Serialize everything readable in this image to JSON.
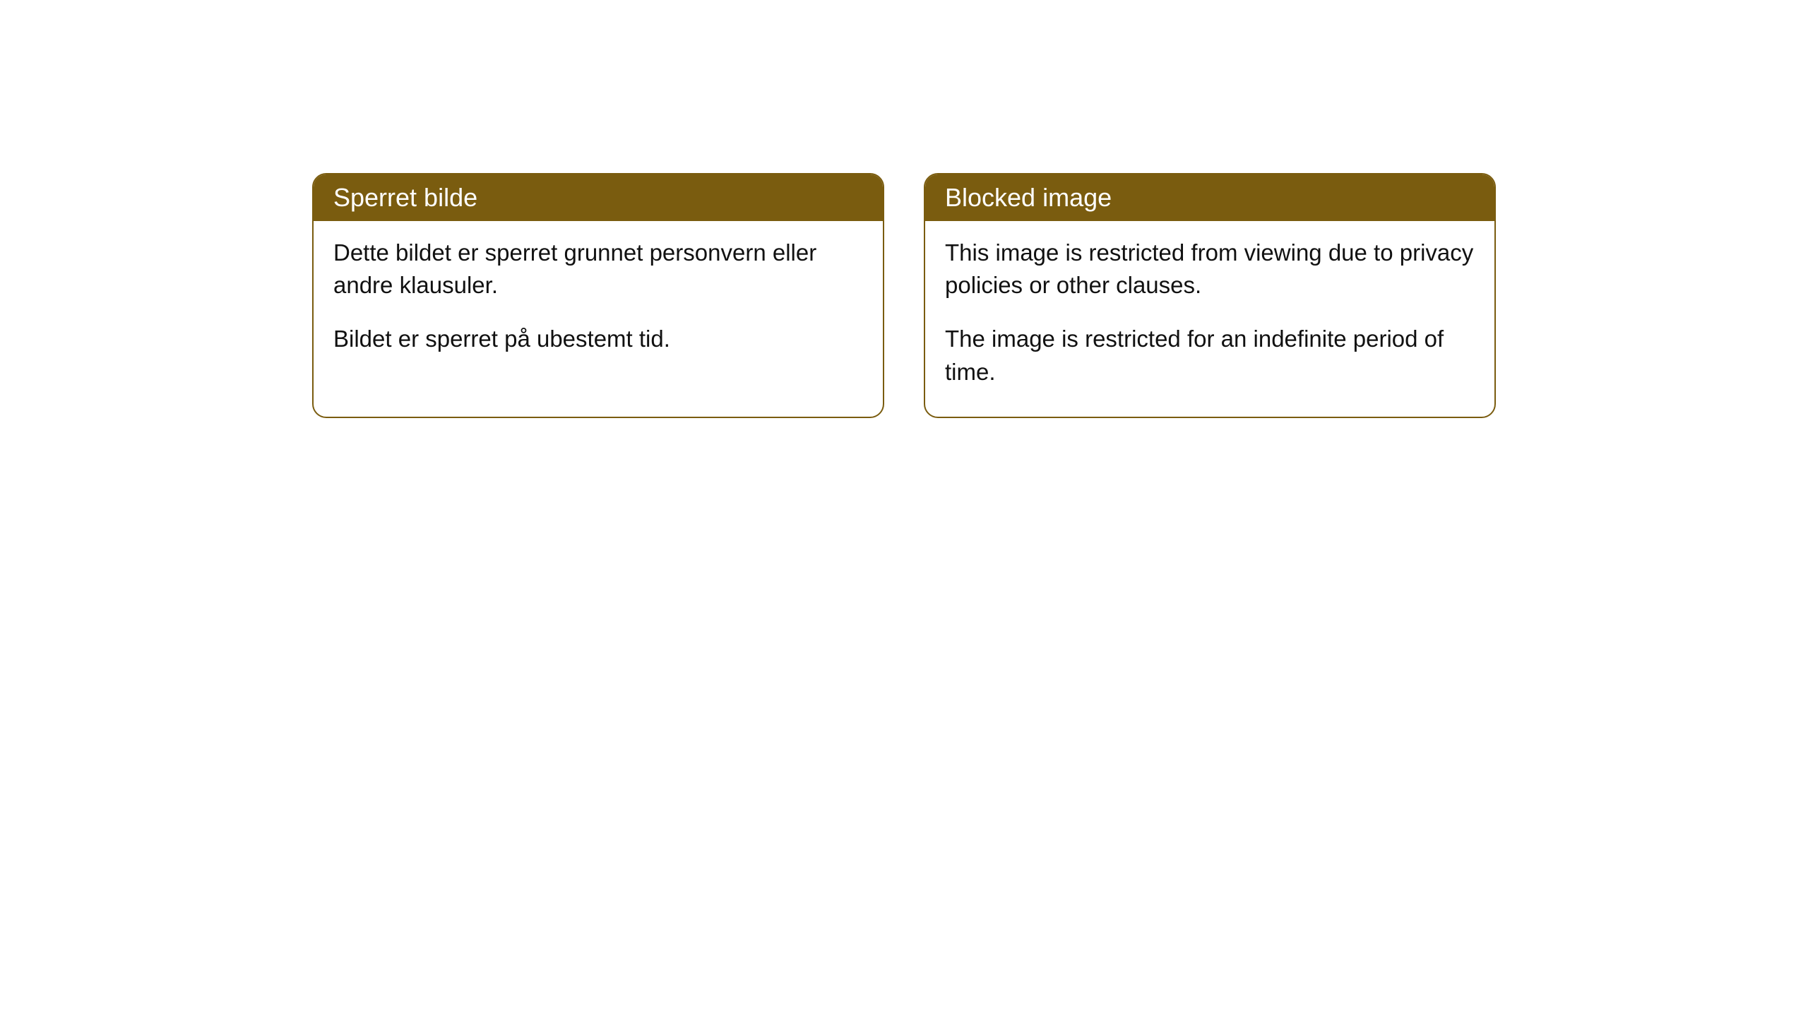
{
  "styling": {
    "header_bg_color": "#7a5c0f",
    "header_text_color": "#ffffff",
    "border_color": "#7a5c0f",
    "body_text_color": "#111111",
    "page_bg_color": "#ffffff",
    "border_radius": "20px",
    "header_fontsize": 36,
    "body_fontsize": 33
  },
  "cards": [
    {
      "title": "Sperret bilde",
      "paragraph1": "Dette bildet er sperret grunnet personvern eller andre klausuler.",
      "paragraph2": "Bildet er sperret på ubestemt tid."
    },
    {
      "title": "Blocked image",
      "paragraph1": "This image is restricted from viewing due to privacy policies or other clauses.",
      "paragraph2": "The image is restricted for an indefinite period of time."
    }
  ]
}
